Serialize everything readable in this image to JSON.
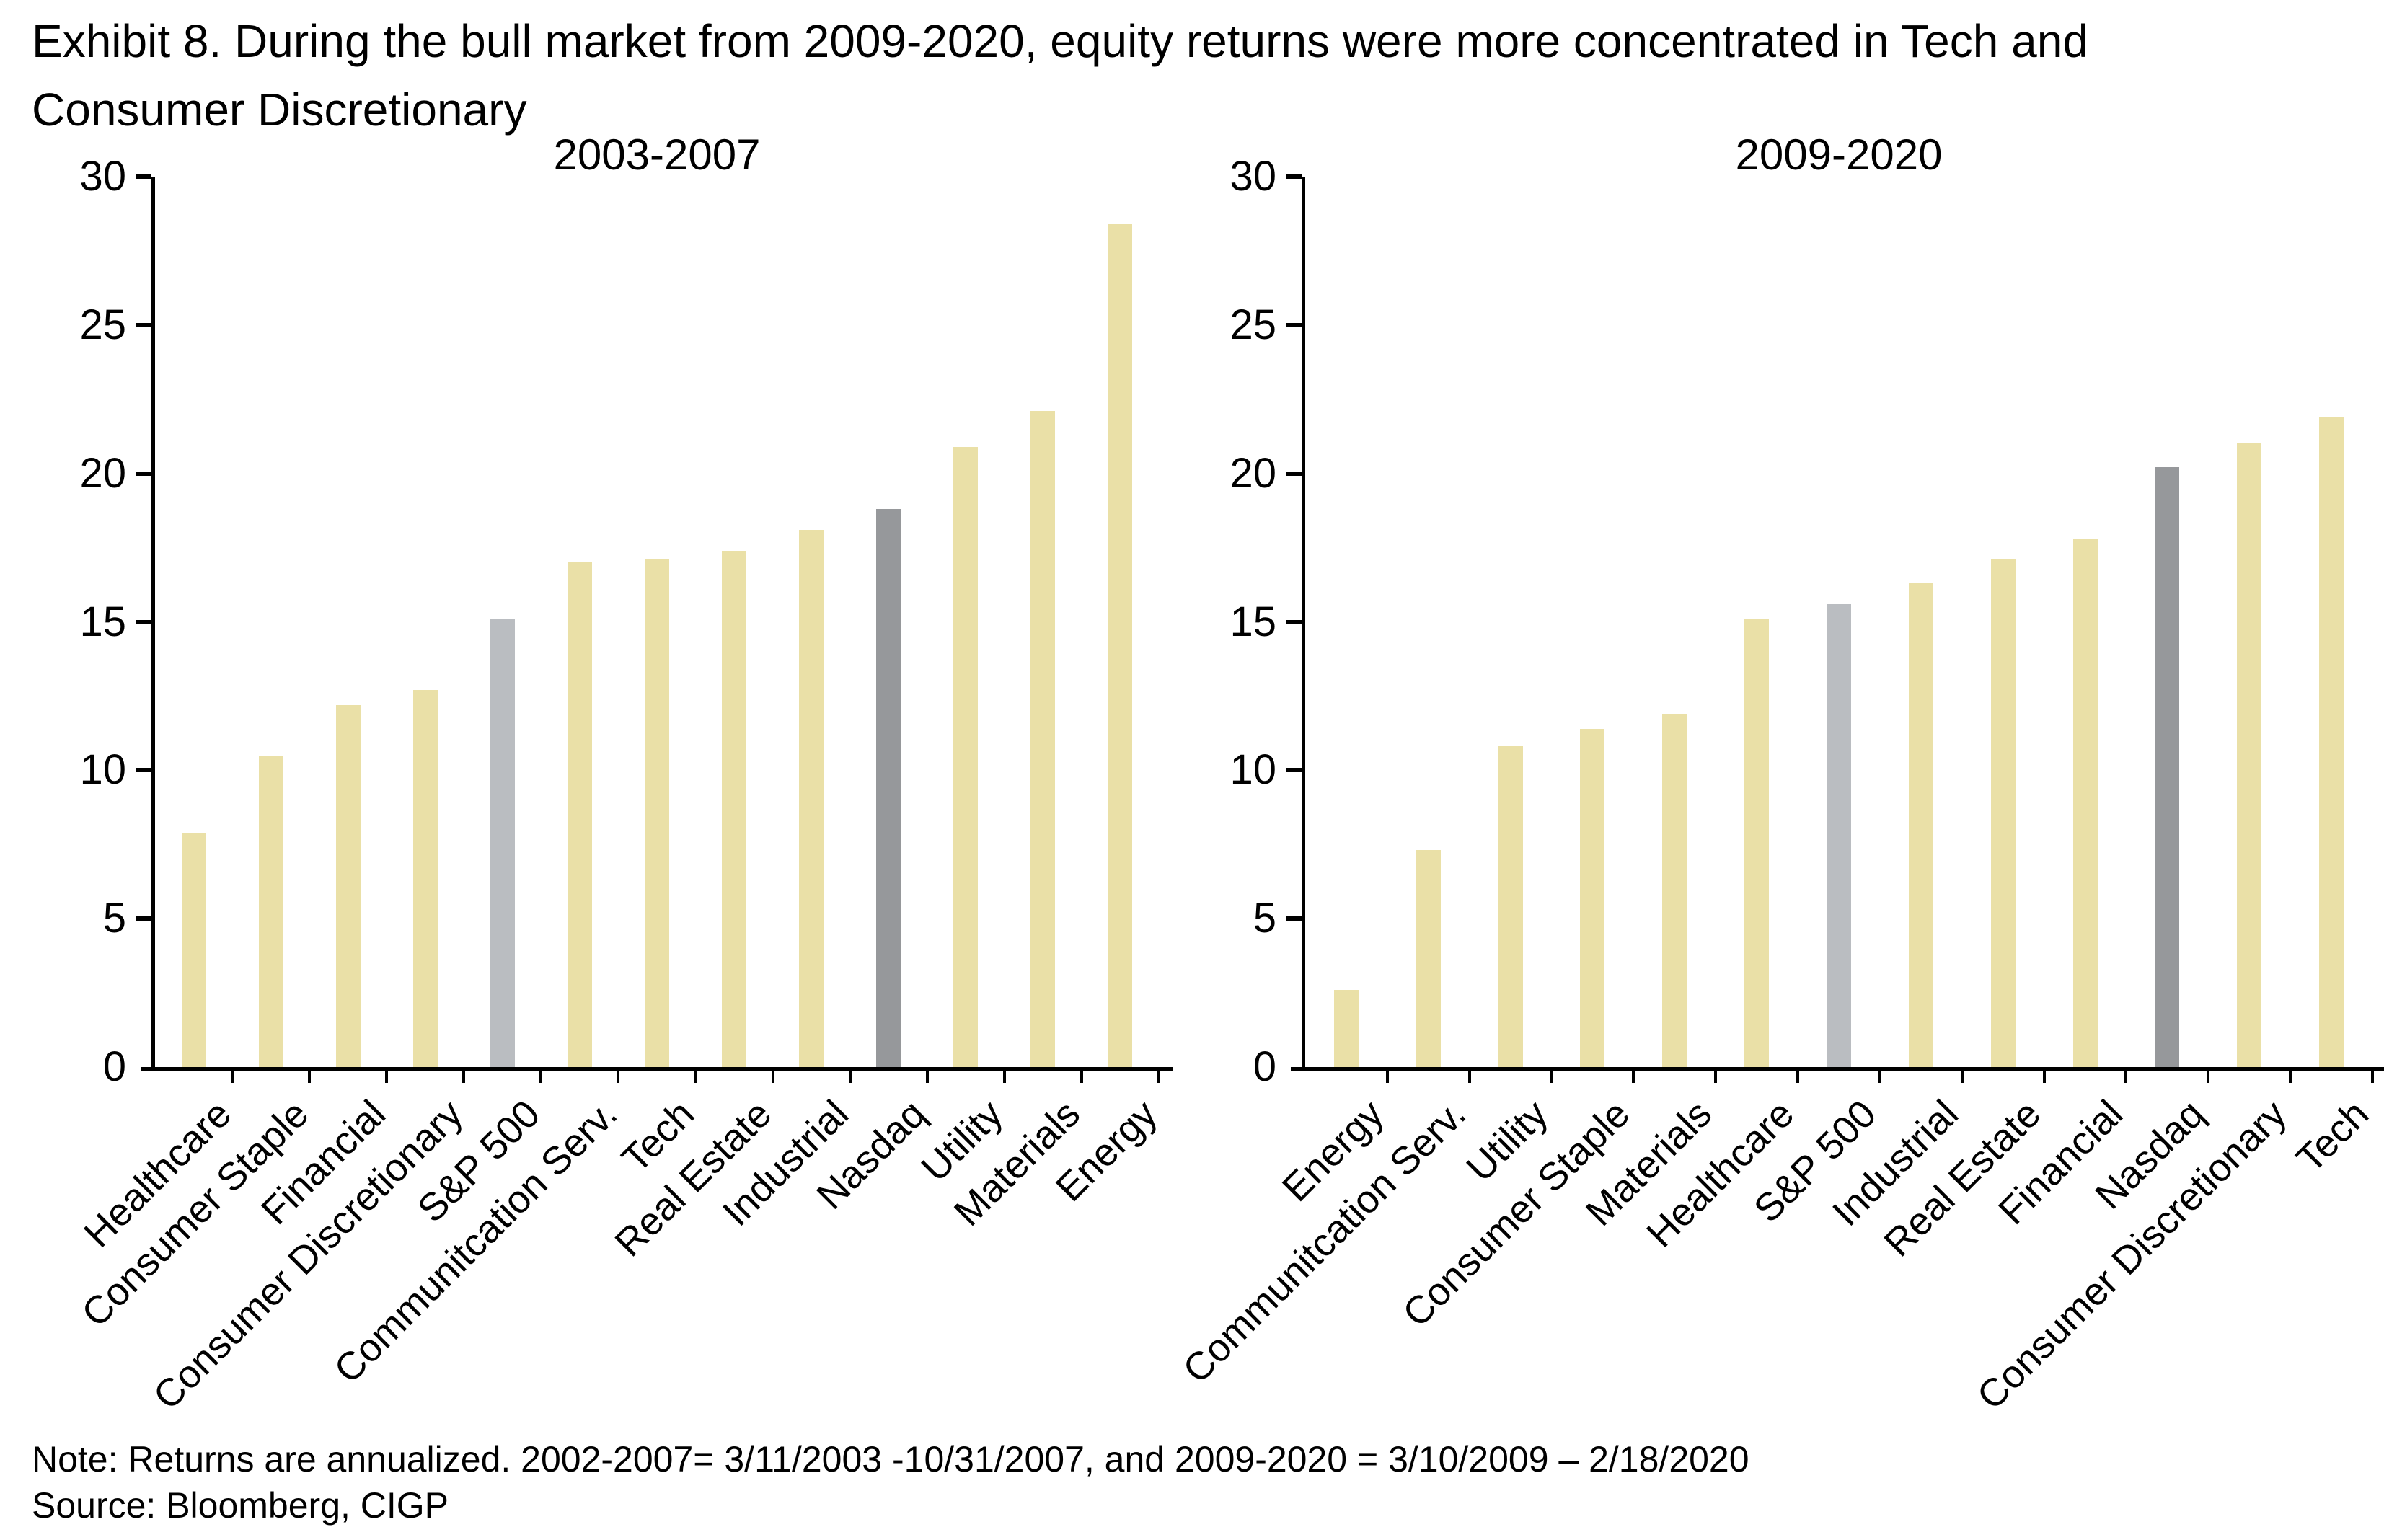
{
  "page": {
    "title_lines": [
      "Exhibit 8. During the bull market from 2009-2020, equity returns were more concentrated in Tech and",
      "Consumer Discretionary"
    ],
    "note": "Note: Returns are annualized. 2002-2007= 3/11/2003 -10/31/2007, and 2009-2020 = 3/10/2009 – 2/18/2020",
    "source": "Source: Bloomberg, CIGP"
  },
  "colors": {
    "bar_default": "#EAE0A7",
    "bar_sp500": "#BABDC1",
    "bar_nasdaq": "#96989B",
    "axis": "#000000",
    "text": "#000000",
    "background": "#FFFFFF"
  },
  "chart_data": [
    {
      "type": "bar",
      "title": "2003-2007",
      "ylim": [
        0,
        30
      ],
      "yticks": [
        0,
        5,
        10,
        15,
        20,
        25,
        30
      ],
      "grid": false,
      "legend": "none",
      "categories": [
        "Healthcare",
        "Consumer Staple",
        "Financial",
        "Consumer Discretionary",
        "S&P 500",
        "Communitcation Serv.",
        "Tech",
        "Real Estate",
        "Industrial",
        "Nasdaq",
        "Utility",
        "Materials",
        "Energy"
      ],
      "values": [
        7.9,
        10.5,
        12.2,
        12.7,
        15.1,
        17.0,
        17.1,
        17.4,
        18.1,
        18.8,
        20.9,
        22.1,
        28.4
      ],
      "highlight": {
        "S&P 500": "bar_sp500",
        "Nasdaq": "bar_nasdaq"
      }
    },
    {
      "type": "bar",
      "title": "2009-2020",
      "ylim": [
        0,
        30
      ],
      "yticks": [
        0,
        5,
        10,
        15,
        20,
        25,
        30
      ],
      "grid": false,
      "legend": "none",
      "categories": [
        "Energy",
        "Communitcation Serv.",
        "Utility",
        "Consumer Staple",
        "Materials",
        "Healthcare",
        "S&P 500",
        "Industrial",
        "Real Estate",
        "Financial",
        "Nasdaq",
        "Consumer Discretionary",
        "Tech"
      ],
      "values": [
        2.6,
        7.3,
        10.8,
        11.4,
        11.9,
        15.1,
        15.6,
        16.3,
        17.1,
        17.8,
        20.2,
        21.0,
        21.9
      ],
      "highlight": {
        "S&P 500": "bar_sp500",
        "Nasdaq": "bar_nasdaq"
      }
    }
  ]
}
